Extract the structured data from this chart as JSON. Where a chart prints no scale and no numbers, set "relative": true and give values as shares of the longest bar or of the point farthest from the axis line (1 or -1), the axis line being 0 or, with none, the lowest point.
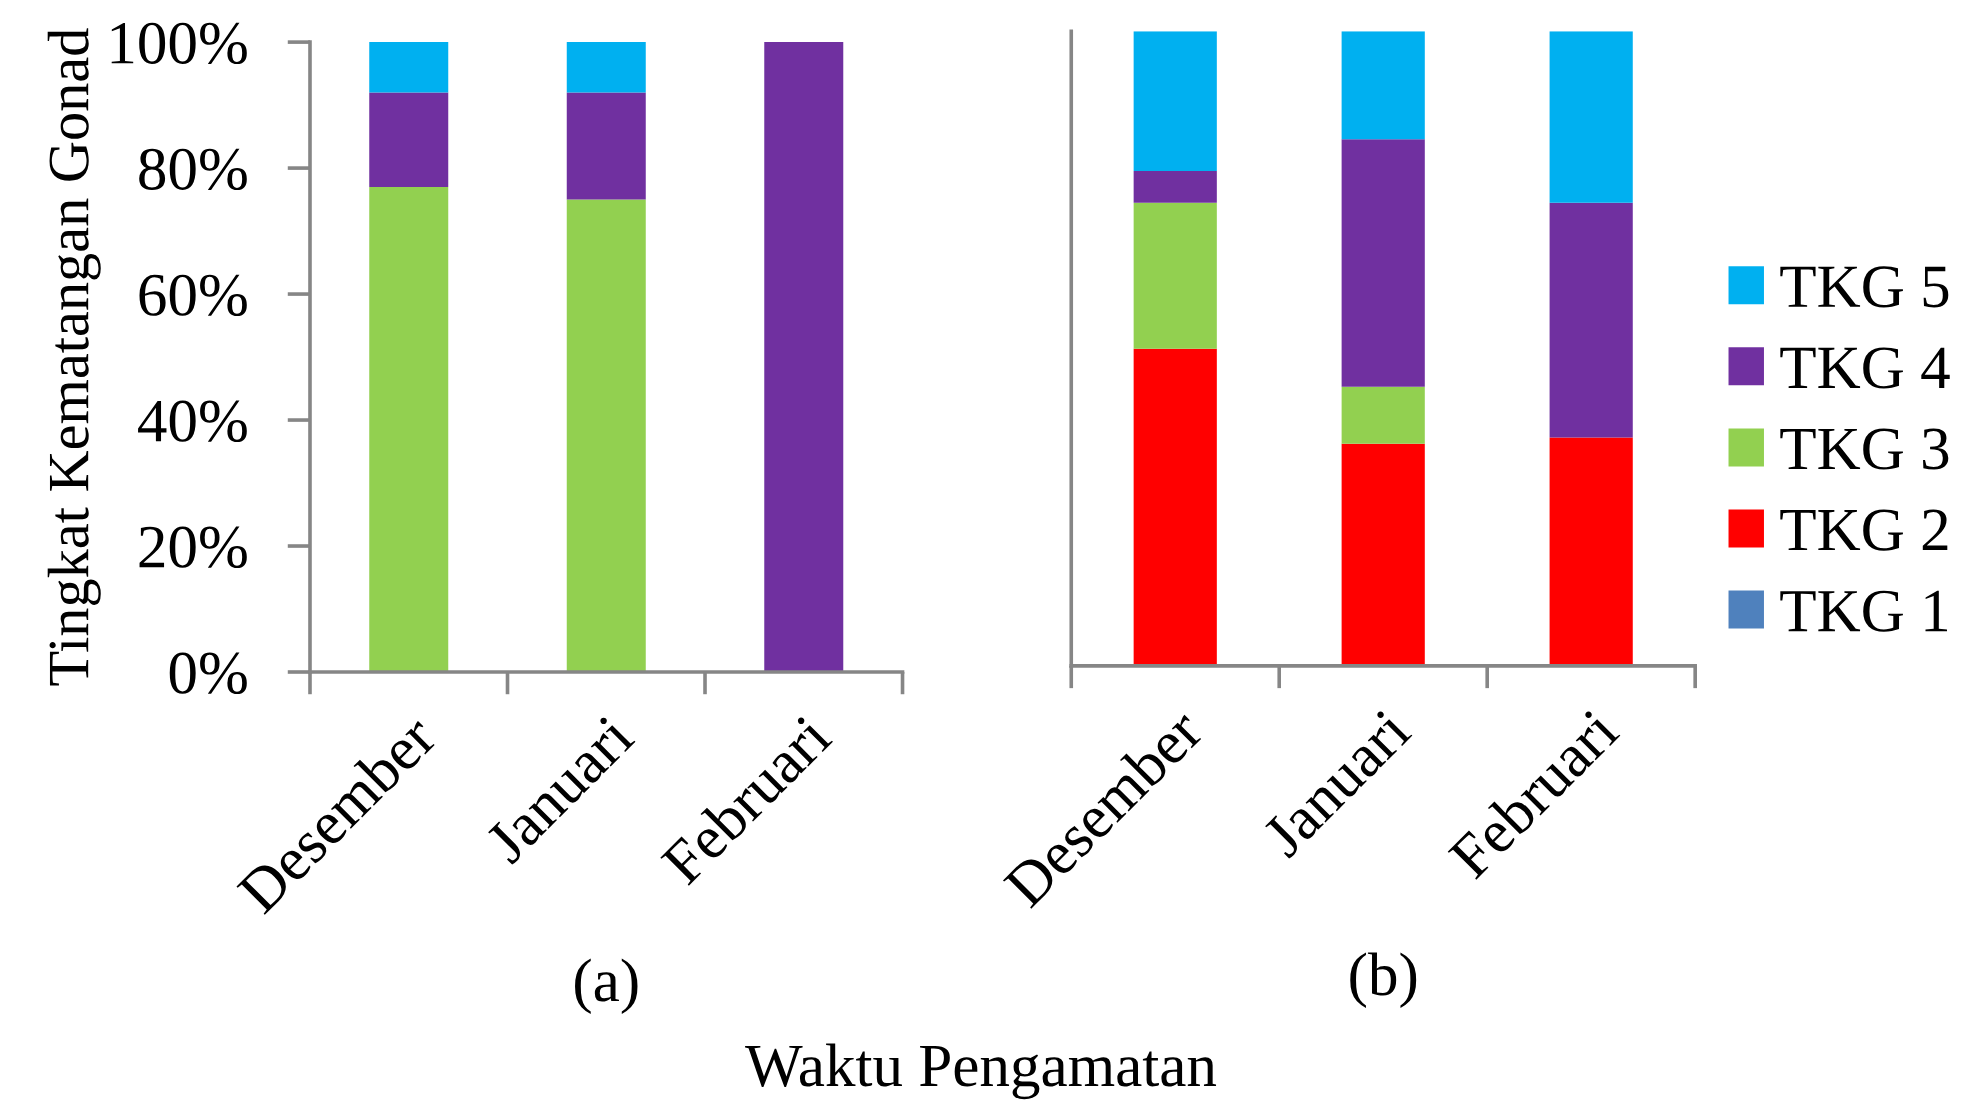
{
  "chart_data": [
    {
      "type": "bar",
      "stacked": true,
      "ylabel": "Tingkat Kematangan Gonad",
      "xlabel": "(a)",
      "annotations": [
        "Waktu Pengamatan"
      ],
      "categories": [
        "Desember",
        "Januari",
        "Februari"
      ],
      "series": [
        {
          "color": "#92d050",
          "values": [
            77,
            75,
            0
          ]
        },
        {
          "color": "#7030a0",
          "values": [
            15,
            17,
            100
          ]
        },
        {
          "color": "#00b0f0",
          "values": [
            8,
            8,
            0
          ]
        }
      ],
      "ylim": [
        0,
        100
      ],
      "yticks": [
        {
          "value": 0,
          "label": "0%"
        },
        {
          "value": 20,
          "label": "20%"
        },
        {
          "value": 40,
          "label": "40%"
        },
        {
          "value": 60,
          "label": "60%"
        },
        {
          "value": 80,
          "label": "80%"
        },
        {
          "value": 100,
          "label": "100%"
        }
      ]
    },
    {
      "type": "bar",
      "stacked": true,
      "relative": true,
      "xlabel": "(b)",
      "categories": [
        "Desember",
        "Januari",
        "Februari"
      ],
      "series": [
        {
          "name": "TKG 1",
          "color": "#4f81bd",
          "values": [
            0,
            0,
            0
          ]
        },
        {
          "name": "TKG 2",
          "color": "#ff0000",
          "values": [
            0.5,
            0.35,
            0.36
          ]
        },
        {
          "name": "TKG 3",
          "color": "#92d050",
          "values": [
            0.23,
            0.09,
            0
          ]
        },
        {
          "name": "TKG 4",
          "color": "#7030a0",
          "values": [
            0.05,
            0.39,
            0.37
          ]
        },
        {
          "name": "TKG 5",
          "color": "#00b0f0",
          "values": [
            0.22,
            0.17,
            0.27
          ]
        }
      ],
      "legend": "right"
    }
  ]
}
